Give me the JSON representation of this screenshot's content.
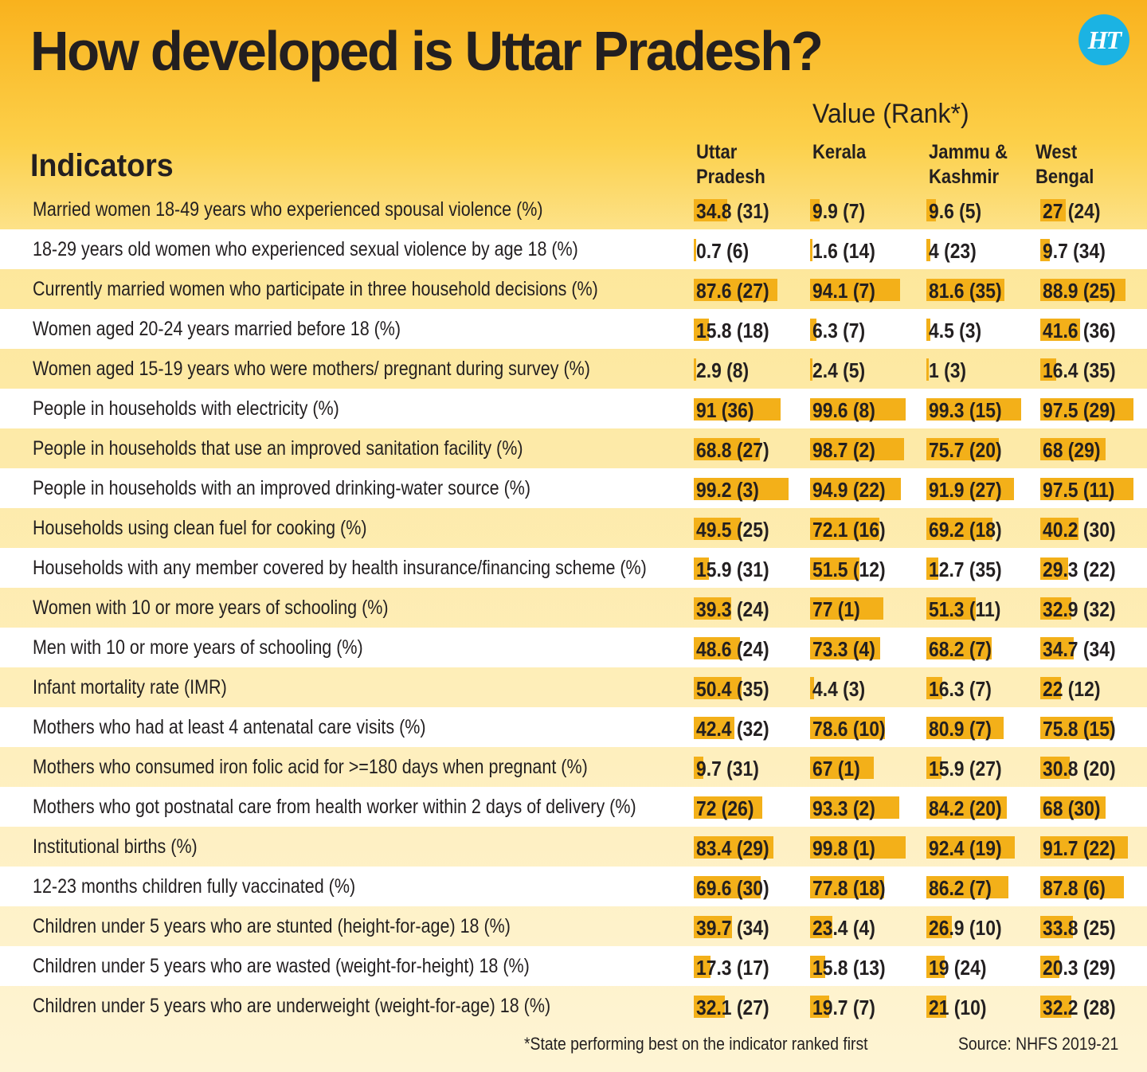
{
  "header": {
    "title": "How developed is Uttar Pradesh?",
    "logo_text": "HT",
    "value_rank_label": "Value (Rank*)",
    "indicators_label": "Indicators"
  },
  "columns": [
    {
      "line1": "Uttar",
      "line2": "Pradesh"
    },
    {
      "line1": "Kerala",
      "line2": ""
    },
    {
      "line1": "Jammu &",
      "line2": "Kashmir"
    },
    {
      "line1": "West",
      "line2": "Bengal"
    }
  ],
  "colors": {
    "bar": "#f3b019",
    "stripe": "#ffffff",
    "logo": "#1bb3e3"
  },
  "chart_data": {
    "type": "table",
    "title": "How developed is Uttar Pradesh?",
    "value_scale_max": 100,
    "states": [
      "Uttar Pradesh",
      "Kerala",
      "Jammu & Kashmir",
      "West Bengal"
    ],
    "rows": [
      {
        "indicator": "Married women 18-49 years who experienced spousal violence (%)",
        "values": [
          34.8,
          9.9,
          9.6,
          27
        ],
        "ranks": [
          31,
          7,
          5,
          24
        ],
        "cells": [
          "34.8 (31)",
          "9.9 (7)",
          "9.6 (5)",
          "27 (24)"
        ]
      },
      {
        "indicator": "18-29 years old women who experienced sexual violence by age 18 (%)",
        "values": [
          0.7,
          1.6,
          4,
          9.7
        ],
        "ranks": [
          6,
          14,
          23,
          34
        ],
        "cells": [
          "0.7 (6)",
          "1.6 (14)",
          "4 (23)",
          "9.7 (34)"
        ]
      },
      {
        "indicator": "Currently married women who participate in three household decisions (%)",
        "values": [
          87.6,
          94.1,
          81.6,
          88.9
        ],
        "ranks": [
          27,
          7,
          35,
          25
        ],
        "cells": [
          "87.6 (27)",
          "94.1 (7)",
          "81.6 (35)",
          "88.9 (25)"
        ]
      },
      {
        "indicator": "Women aged 20-24 years married before 18 (%)",
        "values": [
          15.8,
          6.3,
          4.5,
          41.6
        ],
        "ranks": [
          18,
          7,
          3,
          36
        ],
        "cells": [
          "15.8 (18)",
          "6.3 (7)",
          "4.5 (3)",
          "41.6 (36)"
        ]
      },
      {
        "indicator": "Women aged 15-19 years who were mothers/ pregnant during survey (%)",
        "values": [
          2.9,
          2.4,
          1,
          16.4
        ],
        "ranks": [
          8,
          5,
          3,
          35
        ],
        "cells": [
          "2.9 (8)",
          "2.4 (5)",
          "1 (3)",
          "16.4 (35)"
        ]
      },
      {
        "indicator": "People in households with electricity (%)",
        "values": [
          91,
          99.6,
          99.3,
          97.5
        ],
        "ranks": [
          36,
          8,
          15,
          29
        ],
        "cells": [
          "91 (36)",
          "99.6 (8)",
          "99.3 (15)",
          "97.5 (29)"
        ]
      },
      {
        "indicator": "People in households that use an improved sanitation facility (%)",
        "values": [
          68.8,
          98.7,
          75.7,
          68
        ],
        "ranks": [
          27,
          2,
          20,
          29
        ],
        "cells": [
          "68.8 (27)",
          "98.7 (2)",
          "75.7 (20)",
          "68 (29)"
        ]
      },
      {
        "indicator": "People in households with an improved drinking-water source (%)",
        "values": [
          99.2,
          94.9,
          91.9,
          97.5
        ],
        "ranks": [
          3,
          22,
          27,
          11
        ],
        "cells": [
          "99.2 (3)",
          "94.9 (22)",
          "91.9 (27)",
          "97.5 (11)"
        ]
      },
      {
        "indicator": "Households using clean fuel for cooking (%)",
        "values": [
          49.5,
          72.1,
          69.2,
          40.2
        ],
        "ranks": [
          25,
          16,
          18,
          30
        ],
        "cells": [
          "49.5 (25)",
          "72.1 (16)",
          "69.2 (18)",
          "40.2 (30)"
        ]
      },
      {
        "indicator": "Households with any member covered by health insurance/financing scheme (%)",
        "values": [
          15.9,
          51.5,
          12.7,
          29.3
        ],
        "ranks": [
          31,
          12,
          35,
          22
        ],
        "cells": [
          "15.9 (31)",
          "51.5 (12)",
          "12.7 (35)",
          "29.3 (22)"
        ]
      },
      {
        "indicator": "Women with 10 or more years of schooling (%)",
        "values": [
          39.3,
          77,
          51.3,
          32.9
        ],
        "ranks": [
          24,
          1,
          11,
          32
        ],
        "cells": [
          "39.3 (24)",
          "77 (1)",
          "51.3 (11)",
          "32.9 (32)"
        ]
      },
      {
        "indicator": "Men with 10 or more years of schooling (%)",
        "values": [
          48.6,
          73.3,
          68.2,
          34.7
        ],
        "ranks": [
          24,
          4,
          7,
          34
        ],
        "cells": [
          "48.6 (24)",
          "73.3 (4)",
          "68.2 (7)",
          "34.7 (34)"
        ]
      },
      {
        "indicator": "Infant mortality rate (IMR)",
        "values": [
          50.4,
          4.4,
          16.3,
          22
        ],
        "ranks": [
          35,
          3,
          7,
          12
        ],
        "cells": [
          "50.4 (35)",
          "4.4 (3)",
          "16.3 (7)",
          "22 (12)"
        ]
      },
      {
        "indicator": "Mothers who had at least 4 antenatal care visits (%)",
        "values": [
          42.4,
          78.6,
          80.9,
          75.8
        ],
        "ranks": [
          32,
          10,
          7,
          15
        ],
        "cells": [
          "42.4 (32)",
          "78.6 (10)",
          "80.9 (7)",
          "75.8 (15)"
        ]
      },
      {
        "indicator": "Mothers who consumed iron folic acid for >=180 days when pregnant (%)",
        "values": [
          9.7,
          67,
          15.9,
          30.8
        ],
        "ranks": [
          31,
          1,
          27,
          20
        ],
        "cells": [
          "9.7 (31)",
          "67 (1)",
          "15.9 (27)",
          "30.8 (20)"
        ]
      },
      {
        "indicator": "Mothers who got postnatal care from health worker within 2 days of delivery (%)",
        "values": [
          72,
          93.3,
          84.2,
          68
        ],
        "ranks": [
          26,
          2,
          20,
          30
        ],
        "cells": [
          "72 (26)",
          "93.3 (2)",
          "84.2 (20)",
          "68 (30)"
        ]
      },
      {
        "indicator": "Institutional births (%)",
        "values": [
          83.4,
          99.8,
          92.4,
          91.7
        ],
        "ranks": [
          29,
          1,
          19,
          22
        ],
        "cells": [
          "83.4 (29)",
          "99.8 (1)",
          "92.4 (19)",
          "91.7 (22)"
        ]
      },
      {
        "indicator": "12-23 months children fully vaccinated (%)",
        "values": [
          69.6,
          77.8,
          86.2,
          87.8
        ],
        "ranks": [
          30,
          18,
          7,
          6
        ],
        "cells": [
          "69.6 (30)",
          "77.8 (18)",
          "86.2 (7)",
          "87.8 (6)"
        ]
      },
      {
        "indicator": "Children under 5 years who are stunted (height-for-age) 18 (%)",
        "values": [
          39.7,
          23.4,
          26.9,
          33.8
        ],
        "ranks": [
          34,
          4,
          10,
          25
        ],
        "cells": [
          "39.7 (34)",
          "23.4 (4)",
          "26.9 (10)",
          "33.8 (25)"
        ]
      },
      {
        "indicator": "Children under 5 years who are wasted (weight-for-height) 18 (%)",
        "values": [
          17.3,
          15.8,
          19,
          20.3
        ],
        "ranks": [
          17,
          13,
          24,
          29
        ],
        "cells": [
          "17.3 (17)",
          "15.8 (13)",
          "19 (24)",
          "20.3 (29)"
        ]
      },
      {
        "indicator": "Children under 5 years who are underweight (weight-for-age) 18 (%)",
        "values": [
          32.1,
          19.7,
          21,
          32.2
        ],
        "ranks": [
          27,
          7,
          10,
          28
        ],
        "cells": [
          "32.1 (27)",
          "19.7 (7)",
          "21 (10)",
          "32.2 (28)"
        ]
      }
    ]
  },
  "footer": {
    "note": "*State performing best on the indicator ranked first",
    "source": "Source: NHFS 2019-21"
  }
}
